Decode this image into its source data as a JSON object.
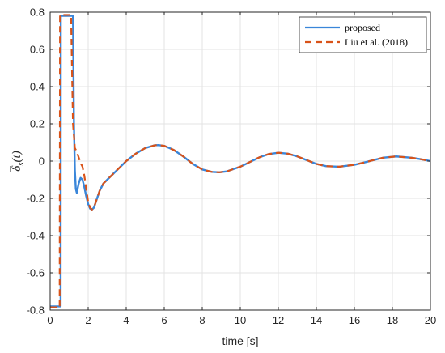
{
  "chart_data": {
    "type": "line",
    "xlabel": "time [s]",
    "ylabel": "δs(t)",
    "xlim": [
      0,
      20
    ],
    "ylim": [
      -0.8,
      0.8
    ],
    "x_ticks": [
      0,
      2,
      4,
      6,
      8,
      10,
      12,
      14,
      16,
      18,
      20
    ],
    "x_tick_labels": [
      "0",
      "2",
      "4",
      "6",
      "8",
      "10",
      "12",
      "14",
      "16",
      "18",
      "20"
    ],
    "y_ticks": [
      0.8,
      0.6,
      0.4,
      0.2,
      0,
      -0.2,
      -0.4,
      -0.6,
      -0.8
    ],
    "y_tick_labels": [
      "0.8",
      "0.6",
      "0.4",
      "0.2",
      "0",
      "-0.2",
      "-0.4",
      "-0.6",
      "-0.8"
    ],
    "grid": true,
    "legend_position": "top-right",
    "series": [
      {
        "name": "proposed",
        "color": "#3a86d9",
        "dash": "solid",
        "x": [
          0,
          0.55,
          0.56,
          1.2,
          1.25,
          1.3,
          1.35,
          1.4,
          1.5,
          1.6,
          1.7,
          1.8,
          1.9,
          2.0,
          2.1,
          2.2,
          2.3,
          2.4,
          2.6,
          2.8,
          3.0,
          3.3,
          3.6,
          4.0,
          4.5,
          5.0,
          5.5,
          5.7,
          6.0,
          6.5,
          7.0,
          7.5,
          8.0,
          8.5,
          8.9,
          9.3,
          10.0,
          10.5,
          11.0,
          11.5,
          12.0,
          12.5,
          13.0,
          13.5,
          14.0,
          14.5,
          15.2,
          16.0,
          16.5,
          17.0,
          17.5,
          18.2,
          19.0,
          19.5,
          20.0
        ],
        "y": [
          -0.78,
          -0.78,
          0.78,
          0.78,
          0.2,
          -0.05,
          -0.15,
          -0.17,
          -0.12,
          -0.09,
          -0.1,
          -0.14,
          -0.19,
          -0.23,
          -0.255,
          -0.26,
          -0.25,
          -0.22,
          -0.16,
          -0.12,
          -0.1,
          -0.07,
          -0.04,
          0.0,
          0.04,
          0.07,
          0.085,
          0.086,
          0.082,
          0.06,
          0.025,
          -0.015,
          -0.045,
          -0.058,
          -0.06,
          -0.055,
          -0.03,
          -0.005,
          0.02,
          0.038,
          0.045,
          0.04,
          0.025,
          0.005,
          -0.015,
          -0.027,
          -0.03,
          -0.02,
          -0.008,
          0.005,
          0.018,
          0.025,
          0.018,
          0.01,
          0.0
        ]
      },
      {
        "name": "Liu et al. (2018)",
        "color": "#d95319",
        "dash": "dashed",
        "x": [
          0,
          0.5,
          0.52,
          1.1,
          1.2,
          1.3,
          1.4,
          1.5,
          1.6,
          1.7,
          1.8,
          1.9,
          2.0,
          2.1,
          2.2,
          2.3,
          2.4,
          2.6,
          2.8,
          3.0,
          3.3,
          3.6,
          4.0,
          4.5,
          5.0,
          5.5,
          5.7,
          6.0,
          6.5,
          7.0,
          7.5,
          8.0,
          8.5,
          8.9,
          9.3,
          10.0,
          10.5,
          11.0,
          11.5,
          12.0,
          12.5,
          13.0,
          13.5,
          14.0,
          14.5,
          15.2,
          16.0,
          16.5,
          17.0,
          17.5,
          18.2,
          19.0,
          19.5,
          20.0
        ],
        "y": [
          -0.785,
          -0.785,
          0.785,
          0.785,
          0.2,
          0.07,
          0.05,
          0.02,
          -0.01,
          -0.03,
          -0.08,
          -0.15,
          -0.22,
          -0.25,
          -0.26,
          -0.25,
          -0.22,
          -0.16,
          -0.12,
          -0.1,
          -0.07,
          -0.04,
          0.0,
          0.04,
          0.07,
          0.085,
          0.086,
          0.082,
          0.06,
          0.025,
          -0.015,
          -0.045,
          -0.058,
          -0.06,
          -0.055,
          -0.03,
          -0.005,
          0.02,
          0.038,
          0.045,
          0.04,
          0.025,
          0.005,
          -0.015,
          -0.027,
          -0.03,
          -0.02,
          -0.008,
          0.005,
          0.018,
          0.025,
          0.018,
          0.01,
          0.0
        ]
      }
    ]
  }
}
